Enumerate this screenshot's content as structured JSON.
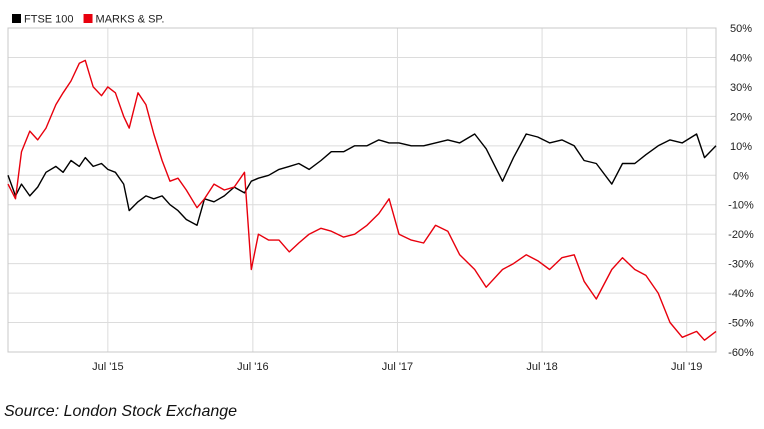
{
  "chart_data": {
    "type": "line",
    "legend": {
      "placement": "top-left"
    },
    "grid": true,
    "ylim": [
      -60,
      50
    ],
    "x_range": [
      "2014-10-22",
      "2019-09-13"
    ],
    "x_ticks": [
      {
        "date": "2015-07-01",
        "label": "Jul '15"
      },
      {
        "date": "2016-07-01",
        "label": "Jul '16"
      },
      {
        "date": "2017-07-01",
        "label": "Jul '17"
      },
      {
        "date": "2018-07-01",
        "label": "Jul '18"
      },
      {
        "date": "2019-07-01",
        "label": "Jul '19"
      }
    ],
    "y_ticks": [
      {
        "value": 50,
        "label": "50%"
      },
      {
        "value": 40,
        "label": "40%"
      },
      {
        "value": 30,
        "label": "30%"
      },
      {
        "value": 20,
        "label": "20%"
      },
      {
        "value": 10,
        "label": "10%"
      },
      {
        "value": 0,
        "label": "0%"
      },
      {
        "value": -10,
        "label": "-10%"
      },
      {
        "value": -20,
        "label": "-20%"
      },
      {
        "value": -30,
        "label": "-30%"
      },
      {
        "value": -40,
        "label": "-40%"
      },
      {
        "value": -50,
        "label": "-50%"
      },
      {
        "value": -60,
        "label": "-60%"
      }
    ],
    "series": [
      {
        "name": "FTSE 100",
        "color": "#000000",
        "x": [
          "2014-10-22",
          "2014-11-10",
          "2014-11-25",
          "2014-12-16",
          "2015-01-05",
          "2015-01-26",
          "2015-02-20",
          "2015-03-10",
          "2015-03-30",
          "2015-04-20",
          "2015-05-05",
          "2015-05-25",
          "2015-06-15",
          "2015-07-01",
          "2015-07-20",
          "2015-08-10",
          "2015-08-24",
          "2015-09-15",
          "2015-10-05",
          "2015-10-25",
          "2015-11-15",
          "2015-12-05",
          "2015-12-25",
          "2016-01-15",
          "2016-02-11",
          "2016-03-01",
          "2016-03-25",
          "2016-04-20",
          "2016-05-15",
          "2016-06-10",
          "2016-06-27",
          "2016-07-15",
          "2016-08-10",
          "2016-09-05",
          "2016-10-01",
          "2016-10-25",
          "2016-11-20",
          "2016-12-20",
          "2017-01-15",
          "2017-02-15",
          "2017-03-15",
          "2017-04-15",
          "2017-05-15",
          "2017-06-10",
          "2017-07-05",
          "2017-08-05",
          "2017-09-05",
          "2017-10-05",
          "2017-11-05",
          "2017-12-05",
          "2018-01-12",
          "2018-02-10",
          "2018-03-23",
          "2018-04-20",
          "2018-05-22",
          "2018-06-20",
          "2018-07-20",
          "2018-08-20",
          "2018-09-20",
          "2018-10-15",
          "2018-11-15",
          "2018-12-24",
          "2019-01-20",
          "2019-02-20",
          "2019-03-20",
          "2019-04-20",
          "2019-05-20",
          "2019-06-20",
          "2019-07-26",
          "2019-08-15",
          "2019-09-13"
        ],
        "values": [
          0,
          -7,
          -3,
          -7,
          -4,
          1,
          3,
          1,
          5,
          3,
          6,
          3,
          4,
          2,
          1,
          -3,
          -12,
          -9,
          -7,
          -8,
          -7,
          -10,
          -12,
          -15,
          -17,
          -8,
          -9,
          -7,
          -4,
          -6,
          -2,
          -1,
          0,
          2,
          3,
          4,
          2,
          5,
          8,
          8,
          10,
          10,
          12,
          11,
          11,
          10,
          10,
          11,
          12,
          11,
          14,
          9,
          -2,
          6,
          14,
          13,
          11,
          12,
          10,
          5,
          4,
          -3,
          4,
          4,
          7,
          10,
          12,
          11,
          14,
          6,
          10
        ]
      },
      {
        "name": "MARKS & SP.",
        "color": "#e8000d",
        "x": [
          "2014-10-22",
          "2014-11-10",
          "2014-11-25",
          "2014-12-16",
          "2015-01-05",
          "2015-01-26",
          "2015-02-20",
          "2015-03-10",
          "2015-03-30",
          "2015-04-20",
          "2015-05-05",
          "2015-05-25",
          "2015-06-15",
          "2015-07-01",
          "2015-07-20",
          "2015-08-10",
          "2015-08-24",
          "2015-09-15",
          "2015-10-05",
          "2015-10-25",
          "2015-11-15",
          "2015-12-05",
          "2015-12-25",
          "2016-01-15",
          "2016-02-11",
          "2016-03-01",
          "2016-03-25",
          "2016-04-20",
          "2016-05-15",
          "2016-06-10",
          "2016-06-27",
          "2016-07-15",
          "2016-08-10",
          "2016-09-05",
          "2016-10-01",
          "2016-10-25",
          "2016-11-20",
          "2016-12-20",
          "2017-01-15",
          "2017-02-15",
          "2017-03-15",
          "2017-04-15",
          "2017-05-15",
          "2017-06-10",
          "2017-07-05",
          "2017-08-05",
          "2017-09-05",
          "2017-10-05",
          "2017-11-05",
          "2017-12-05",
          "2018-01-12",
          "2018-02-10",
          "2018-03-23",
          "2018-04-20",
          "2018-05-22",
          "2018-06-20",
          "2018-07-20",
          "2018-08-20",
          "2018-09-20",
          "2018-10-15",
          "2018-11-15",
          "2018-12-24",
          "2019-01-20",
          "2019-02-20",
          "2019-03-20",
          "2019-04-20",
          "2019-05-20",
          "2019-06-20",
          "2019-07-26",
          "2019-08-15",
          "2019-09-13"
        ],
        "values": [
          -3,
          -8,
          8,
          15,
          12,
          16,
          24,
          28,
          32,
          38,
          39,
          30,
          27,
          30,
          28,
          20,
          16,
          28,
          24,
          14,
          5,
          -2,
          -1,
          -5,
          -11,
          -8,
          -3,
          -5,
          -4,
          1,
          -32,
          -20,
          -22,
          -22,
          -26,
          -23,
          -20,
          -18,
          -19,
          -21,
          -20,
          -17,
          -13,
          -8,
          -20,
          -22,
          -23,
          -17,
          -19,
          -27,
          -32,
          -38,
          -32,
          -30,
          -27,
          -29,
          -32,
          -28,
          -27,
          -36,
          -42,
          -32,
          -28,
          -32,
          -34,
          -40,
          -50,
          -55,
          -53,
          -56,
          -53
        ]
      }
    ]
  },
  "source_text": "Source: London Stock Exchange"
}
